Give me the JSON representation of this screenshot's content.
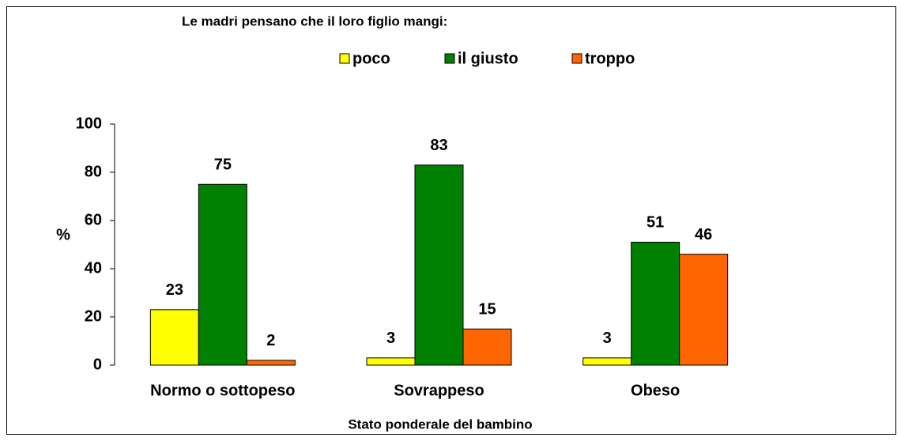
{
  "chart_data": {
    "type": "bar",
    "title": "Le madri pensano che il loro figlio mangi:",
    "x_label": "Stato ponderale del bambino",
    "y_label": "%",
    "categories": [
      "Normo o sottopeso",
      "Sovrappeso",
      "Obeso"
    ],
    "series": [
      {
        "name": "poco",
        "color": "#ffff00",
        "values": [
          23,
          3,
          3
        ]
      },
      {
        "name": "il giusto",
        "color": "#008000",
        "values": [
          75,
          83,
          51
        ]
      },
      {
        "name": "troppo",
        "color": "#ff6600",
        "values": [
          2,
          15,
          46
        ]
      }
    ],
    "ylim": [
      0,
      100
    ],
    "yticks": [
      0,
      20,
      40,
      60,
      80,
      100
    ],
    "legend": "top"
  }
}
